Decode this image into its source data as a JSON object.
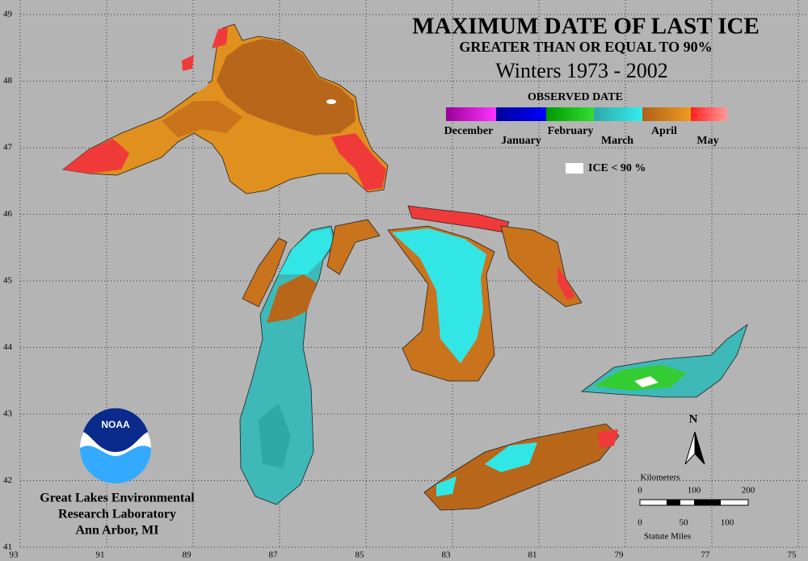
{
  "title": "MAXIMUM DATE OF LAST ICE",
  "subtitle": "GREATER THAN OR EQUAL TO 90%",
  "period": "Winters 1973 - 2002",
  "legend": {
    "title": "OBSERVED DATE",
    "months": [
      "December",
      "January",
      "February",
      "March",
      "April",
      "May"
    ],
    "ice_note": "ICE < 90 %"
  },
  "latitude_labels": [
    49,
    48,
    47,
    46,
    45,
    44,
    43,
    42,
    41
  ],
  "longitude_labels": [
    93,
    91,
    89,
    87,
    85,
    83,
    81,
    79,
    77,
    75
  ],
  "logo": "NOAA",
  "credit": [
    "Great Lakes Environmental",
    "Research Laboratory",
    "Ann Arbor, MI"
  ],
  "north_label": "N",
  "scale": {
    "kilometers_label": "Kilometers",
    "km_ticks": [
      0,
      100,
      200
    ],
    "miles_ticks": [
      0,
      50,
      100
    ],
    "miles_label": "Statute Miles"
  }
}
